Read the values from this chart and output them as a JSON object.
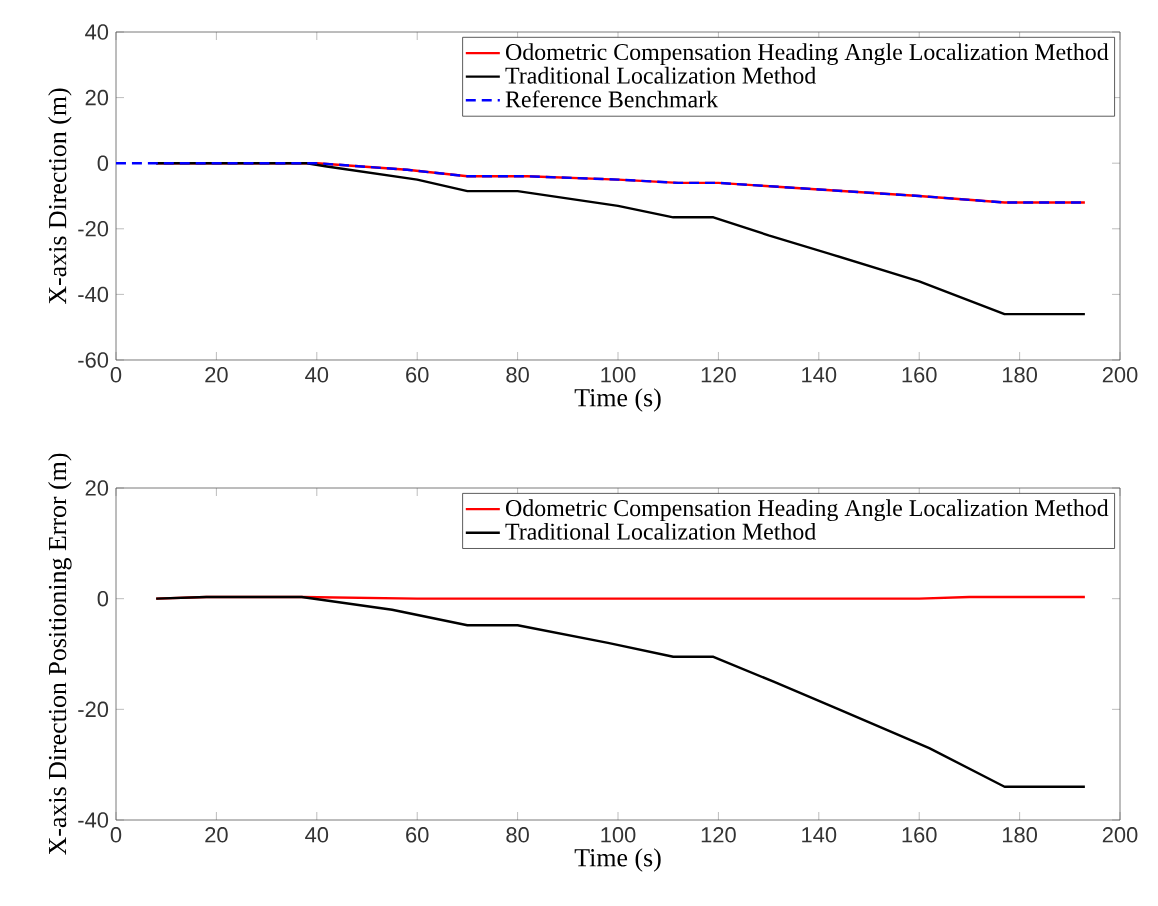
{
  "chart_data": [
    {
      "type": "line",
      "xlabel": "Time (s)",
      "ylabel": "X-axis Direction (m)",
      "xlim": [
        0,
        200
      ],
      "ylim": [
        -60,
        40
      ],
      "xticks": [
        0,
        20,
        40,
        60,
        80,
        100,
        120,
        140,
        160,
        180,
        200
      ],
      "yticks": [
        -60,
        -40,
        -20,
        0,
        20,
        40
      ],
      "legend": "top right",
      "series": [
        {
          "name": "Odometric Compensation Heading Angle Localization Method",
          "color": "#ff0000",
          "line_style": "solid",
          "x": [
            8,
            40,
            58,
            70,
            82,
            100,
            112,
            120,
            140,
            160,
            177,
            193
          ],
          "values": [
            0,
            0,
            -2,
            -4,
            -4,
            -5,
            -6,
            -6,
            -8,
            -10,
            -12,
            -12
          ]
        },
        {
          "name": "Traditional Localization Method",
          "color": "#000000",
          "line_style": "solid",
          "x": [
            8,
            38,
            42,
            60,
            70,
            80,
            100,
            111,
            119,
            130,
            143,
            160,
            177,
            193
          ],
          "values": [
            0,
            0,
            -1,
            -5,
            -8.5,
            -8.5,
            -13,
            -16.5,
            -16.5,
            -22,
            -28,
            -36,
            -46,
            -46
          ]
        },
        {
          "name": "Reference Benchmark",
          "color": "#0000ff",
          "line_style": "dashed",
          "x": [
            0,
            40,
            58,
            70,
            82,
            100,
            112,
            120,
            140,
            160,
            177,
            193
          ],
          "values": [
            0,
            0,
            -2,
            -4,
            -4,
            -5,
            -6,
            -6,
            -8,
            -10,
            -12,
            -12
          ]
        }
      ]
    },
    {
      "type": "line",
      "xlabel": "Time (s)",
      "ylabel": "X-axis Direction Positioning Error (m)",
      "xlim": [
        0,
        200
      ],
      "ylim": [
        -40,
        20
      ],
      "xticks": [
        0,
        20,
        40,
        60,
        80,
        100,
        120,
        140,
        160,
        180,
        200
      ],
      "yticks": [
        -40,
        -20,
        0,
        20
      ],
      "legend": "top right",
      "series": [
        {
          "name": "Odometric Compensation Heading Angle Localization Method",
          "color": "#ff0000",
          "line_style": "solid",
          "x": [
            8,
            18,
            37,
            60,
            100,
            160,
            170,
            193
          ],
          "values": [
            0,
            0.3,
            0.3,
            0,
            0,
            0,
            0.3,
            0.3
          ]
        },
        {
          "name": "Traditional Localization Method",
          "color": "#000000",
          "line_style": "solid",
          "x": [
            8,
            18,
            37,
            55,
            70,
            80,
            98,
            111,
            119,
            131,
            144,
            162,
            177,
            193
          ],
          "values": [
            0,
            0.3,
            0.3,
            -2,
            -4.8,
            -4.8,
            -8,
            -10.5,
            -10.5,
            -15,
            -20,
            -27,
            -34,
            -34
          ]
        }
      ]
    }
  ]
}
